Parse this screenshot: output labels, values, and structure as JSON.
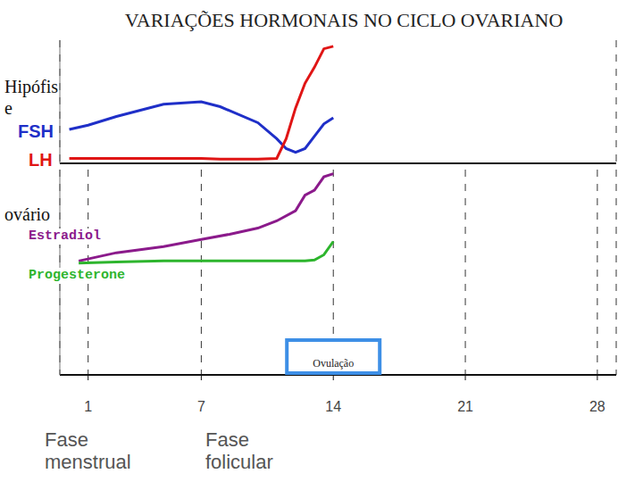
{
  "title": "VARIAÇÕES HORMONAIS NO CICLO OVARIANO",
  "chart_data": [
    {
      "type": "line",
      "title": "Hipófise",
      "x": [
        0,
        1,
        2.5,
        4,
        5,
        7,
        8,
        10,
        11,
        11.5,
        12,
        12.5,
        13,
        13.5,
        14
      ],
      "xlim": [
        -0.5,
        29
      ],
      "xticks": [
        1,
        7,
        14,
        21,
        28
      ],
      "ylim": [
        0,
        100
      ],
      "grid": true,
      "tick_labels": false,
      "series": [
        {
          "name": "FSH",
          "color": "#1f2fc8",
          "values": [
            27.5,
            31,
            38,
            44,
            48,
            50,
            46,
            33,
            20,
            12,
            9,
            12,
            22,
            32,
            37
          ]
        },
        {
          "name": "LH",
          "color": "#e01515",
          "values": [
            4,
            4,
            4,
            4,
            4,
            4,
            3.5,
            3.5,
            4,
            20,
            45,
            65,
            78,
            93,
            95
          ]
        }
      ]
    },
    {
      "type": "line",
      "title": "ovário",
      "x": [
        0.5,
        2.5,
        5,
        7,
        8.5,
        10,
        11,
        12,
        12.5,
        13,
        13.5,
        14
      ],
      "xlim": [
        -0.5,
        29
      ],
      "xticks": [
        1,
        7,
        14,
        21,
        28
      ],
      "ylim": [
        0,
        100
      ],
      "grid": true,
      "tick_labels": "x",
      "annotations": [
        {
          "text": "Ovulação",
          "x": 14
        }
      ],
      "series": [
        {
          "name": "Estradiol",
          "color": "#8b1a8b",
          "values": [
            55.5,
            59.5,
            62.5,
            66,
            68.5,
            71.5,
            75,
            80,
            87.5,
            90,
            96.5,
            98
          ]
        },
        {
          "name": "Progesterone",
          "color": "#2db52d",
          "values": [
            54.5,
            55,
            55.5,
            55.5,
            55.5,
            55.5,
            55.5,
            55.5,
            55.5,
            56,
            58.5,
            65
          ]
        }
      ]
    }
  ],
  "annotations": [
    "Fase menstrual",
    "Fase folicular"
  ]
}
